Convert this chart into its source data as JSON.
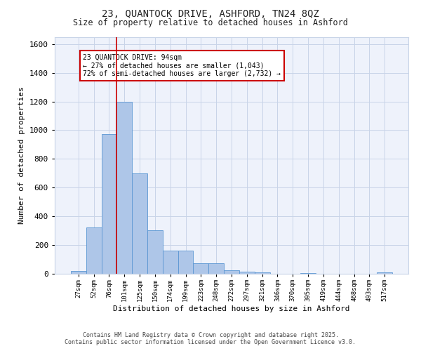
{
  "title_line1": "23, QUANTOCK DRIVE, ASHFORD, TN24 8QZ",
  "title_line2": "Size of property relative to detached houses in Ashford",
  "xlabel": "Distribution of detached houses by size in Ashford",
  "ylabel": "Number of detached properties",
  "bar_labels": [
    "27sqm",
    "52sqm",
    "76sqm",
    "101sqm",
    "125sqm",
    "150sqm",
    "174sqm",
    "199sqm",
    "223sqm",
    "248sqm",
    "272sqm",
    "297sqm",
    "321sqm",
    "346sqm",
    "370sqm",
    "395sqm",
    "419sqm",
    "444sqm",
    "468sqm",
    "493sqm",
    "517sqm"
  ],
  "bar_values": [
    20,
    325,
    975,
    1200,
    700,
    305,
    160,
    160,
    75,
    75,
    25,
    15,
    10,
    0,
    0,
    5,
    0,
    0,
    0,
    0,
    10
  ],
  "bar_color": "#aec6e8",
  "bar_edge_color": "#5a96d2",
  "ylim": [
    0,
    1650
  ],
  "yticks": [
    0,
    200,
    400,
    600,
    800,
    1000,
    1200,
    1400,
    1600
  ],
  "vline_x_idx": 3,
  "vline_color": "#cc0000",
  "annotation_text": "23 QUANTOCK DRIVE: 94sqm\n← 27% of detached houses are smaller (1,043)\n72% of semi-detached houses are larger (2,732) →",
  "annotation_box_color": "#cc0000",
  "annotation_bg": "#ffffff",
  "grid_color": "#c8d4e8",
  "bg_color": "#eef2fb",
  "footer_line1": "Contains HM Land Registry data © Crown copyright and database right 2025.",
  "footer_line2": "Contains public sector information licensed under the Open Government Licence v3.0."
}
